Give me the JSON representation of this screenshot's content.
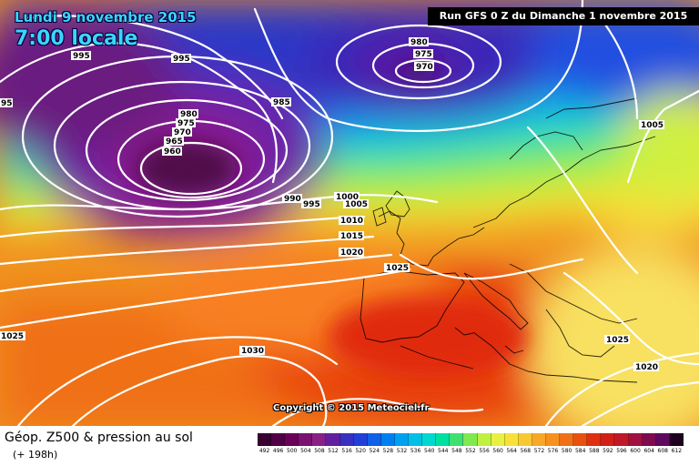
{
  "header": {
    "date_line": "Lundi 9 novembre 2015",
    "time_line": "7:00 locale",
    "run_info": "Run GFS 0 Z du Dimanche 1 novembre 2015"
  },
  "footer": {
    "parameter": "Géop. Z500 & pression au sol",
    "lead_time": "(+ 198h)",
    "copyright": "Copyright © 2015 Meteociel.fr"
  },
  "legend": {
    "ticks": [
      "492",
      "496",
      "500",
      "504",
      "508",
      "512",
      "516",
      "520",
      "524",
      "528",
      "532",
      "536",
      "540",
      "544",
      "548",
      "552",
      "556",
      "560",
      "564",
      "568",
      "572",
      "576",
      "580",
      "584",
      "588",
      "592",
      "596",
      "600",
      "604",
      "608",
      "612"
    ],
    "colors": [
      "#3a0030",
      "#520045",
      "#6a005a",
      "#7a1070",
      "#8a2085",
      "#6020a0",
      "#3a30c0",
      "#2040d8",
      "#1060e8",
      "#0080f0",
      "#00a0f0",
      "#00c0e8",
      "#00d8d0",
      "#00e0a0",
      "#40e070",
      "#80e850",
      "#c0f040",
      "#e8f040",
      "#f8e038",
      "#f8c830",
      "#f8a828",
      "#f89020",
      "#f07018",
      "#e85010",
      "#e03010",
      "#d02018",
      "#c01828",
      "#a01040",
      "#800a50",
      "#600860",
      "#200020"
    ]
  },
  "isobars": [
    "995",
    "995",
    "95",
    "980",
    "975",
    "970",
    "965",
    "960",
    "985",
    "980",
    "975",
    "970",
    "990",
    "995",
    "1000",
    "1005",
    "1010",
    "1015",
    "1020",
    "1025",
    "1005",
    "1025",
    "1030",
    "1025",
    "1020"
  ],
  "colors": {
    "title": "#3ad6ff",
    "isobar": "#ffffff"
  }
}
